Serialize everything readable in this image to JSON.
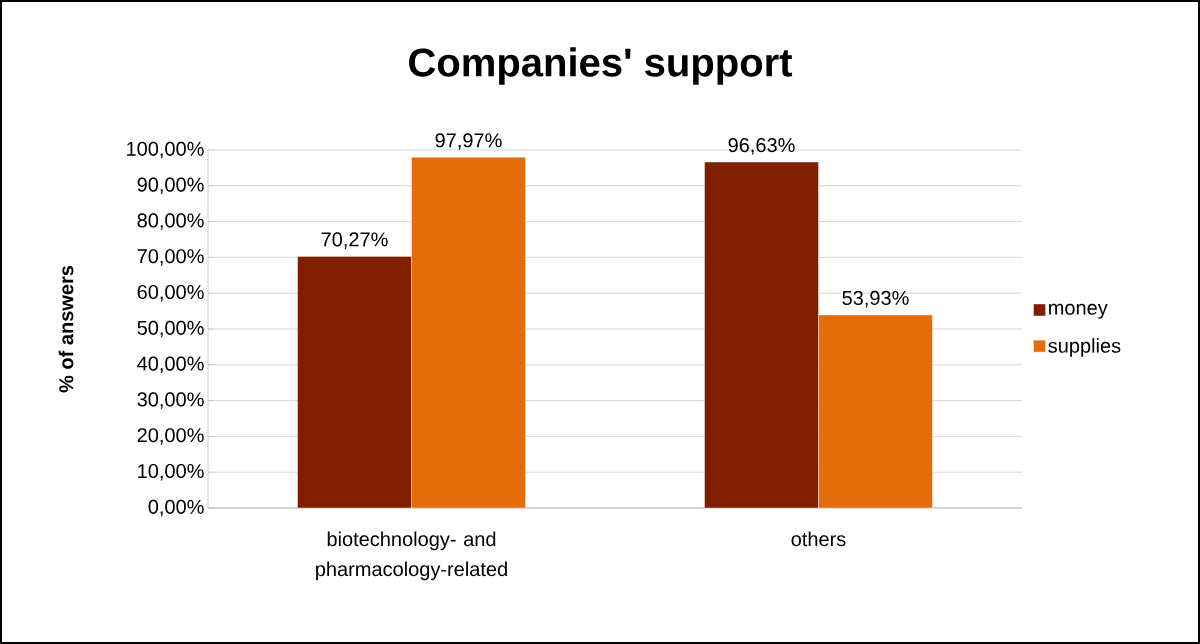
{
  "chart_data": {
    "type": "bar",
    "title": "Companies' support",
    "ylabel": "% of answers",
    "categories": [
      "biotechnology- and pharmacology-related",
      "others"
    ],
    "series": [
      {
        "name": "money",
        "color": "#7f1f00",
        "values": [
          70.27,
          96.63
        ],
        "value_labels": [
          "70,27%",
          "96,63%"
        ]
      },
      {
        "name": "supplies",
        "color": "#e46c0a",
        "values": [
          97.97,
          53.93
        ],
        "value_labels": [
          "97,97%",
          "53,93%"
        ]
      }
    ],
    "ylim": [
      0,
      100
    ],
    "yticks": [
      {
        "value": 0,
        "label": "0,00%"
      },
      {
        "value": 10,
        "label": "10,00%"
      },
      {
        "value": 20,
        "label": "20,00%"
      },
      {
        "value": 30,
        "label": "30,00%"
      },
      {
        "value": 40,
        "label": "40,00%"
      },
      {
        "value": 50,
        "label": "50,00%"
      },
      {
        "value": 60,
        "label": "60,00%"
      },
      {
        "value": 70,
        "label": "70,00%"
      },
      {
        "value": 80,
        "label": "80,00%"
      },
      {
        "value": 90,
        "label": "90,00%"
      },
      {
        "value": 100,
        "label": "100,00%"
      }
    ],
    "grid": "y",
    "legend": "right"
  }
}
